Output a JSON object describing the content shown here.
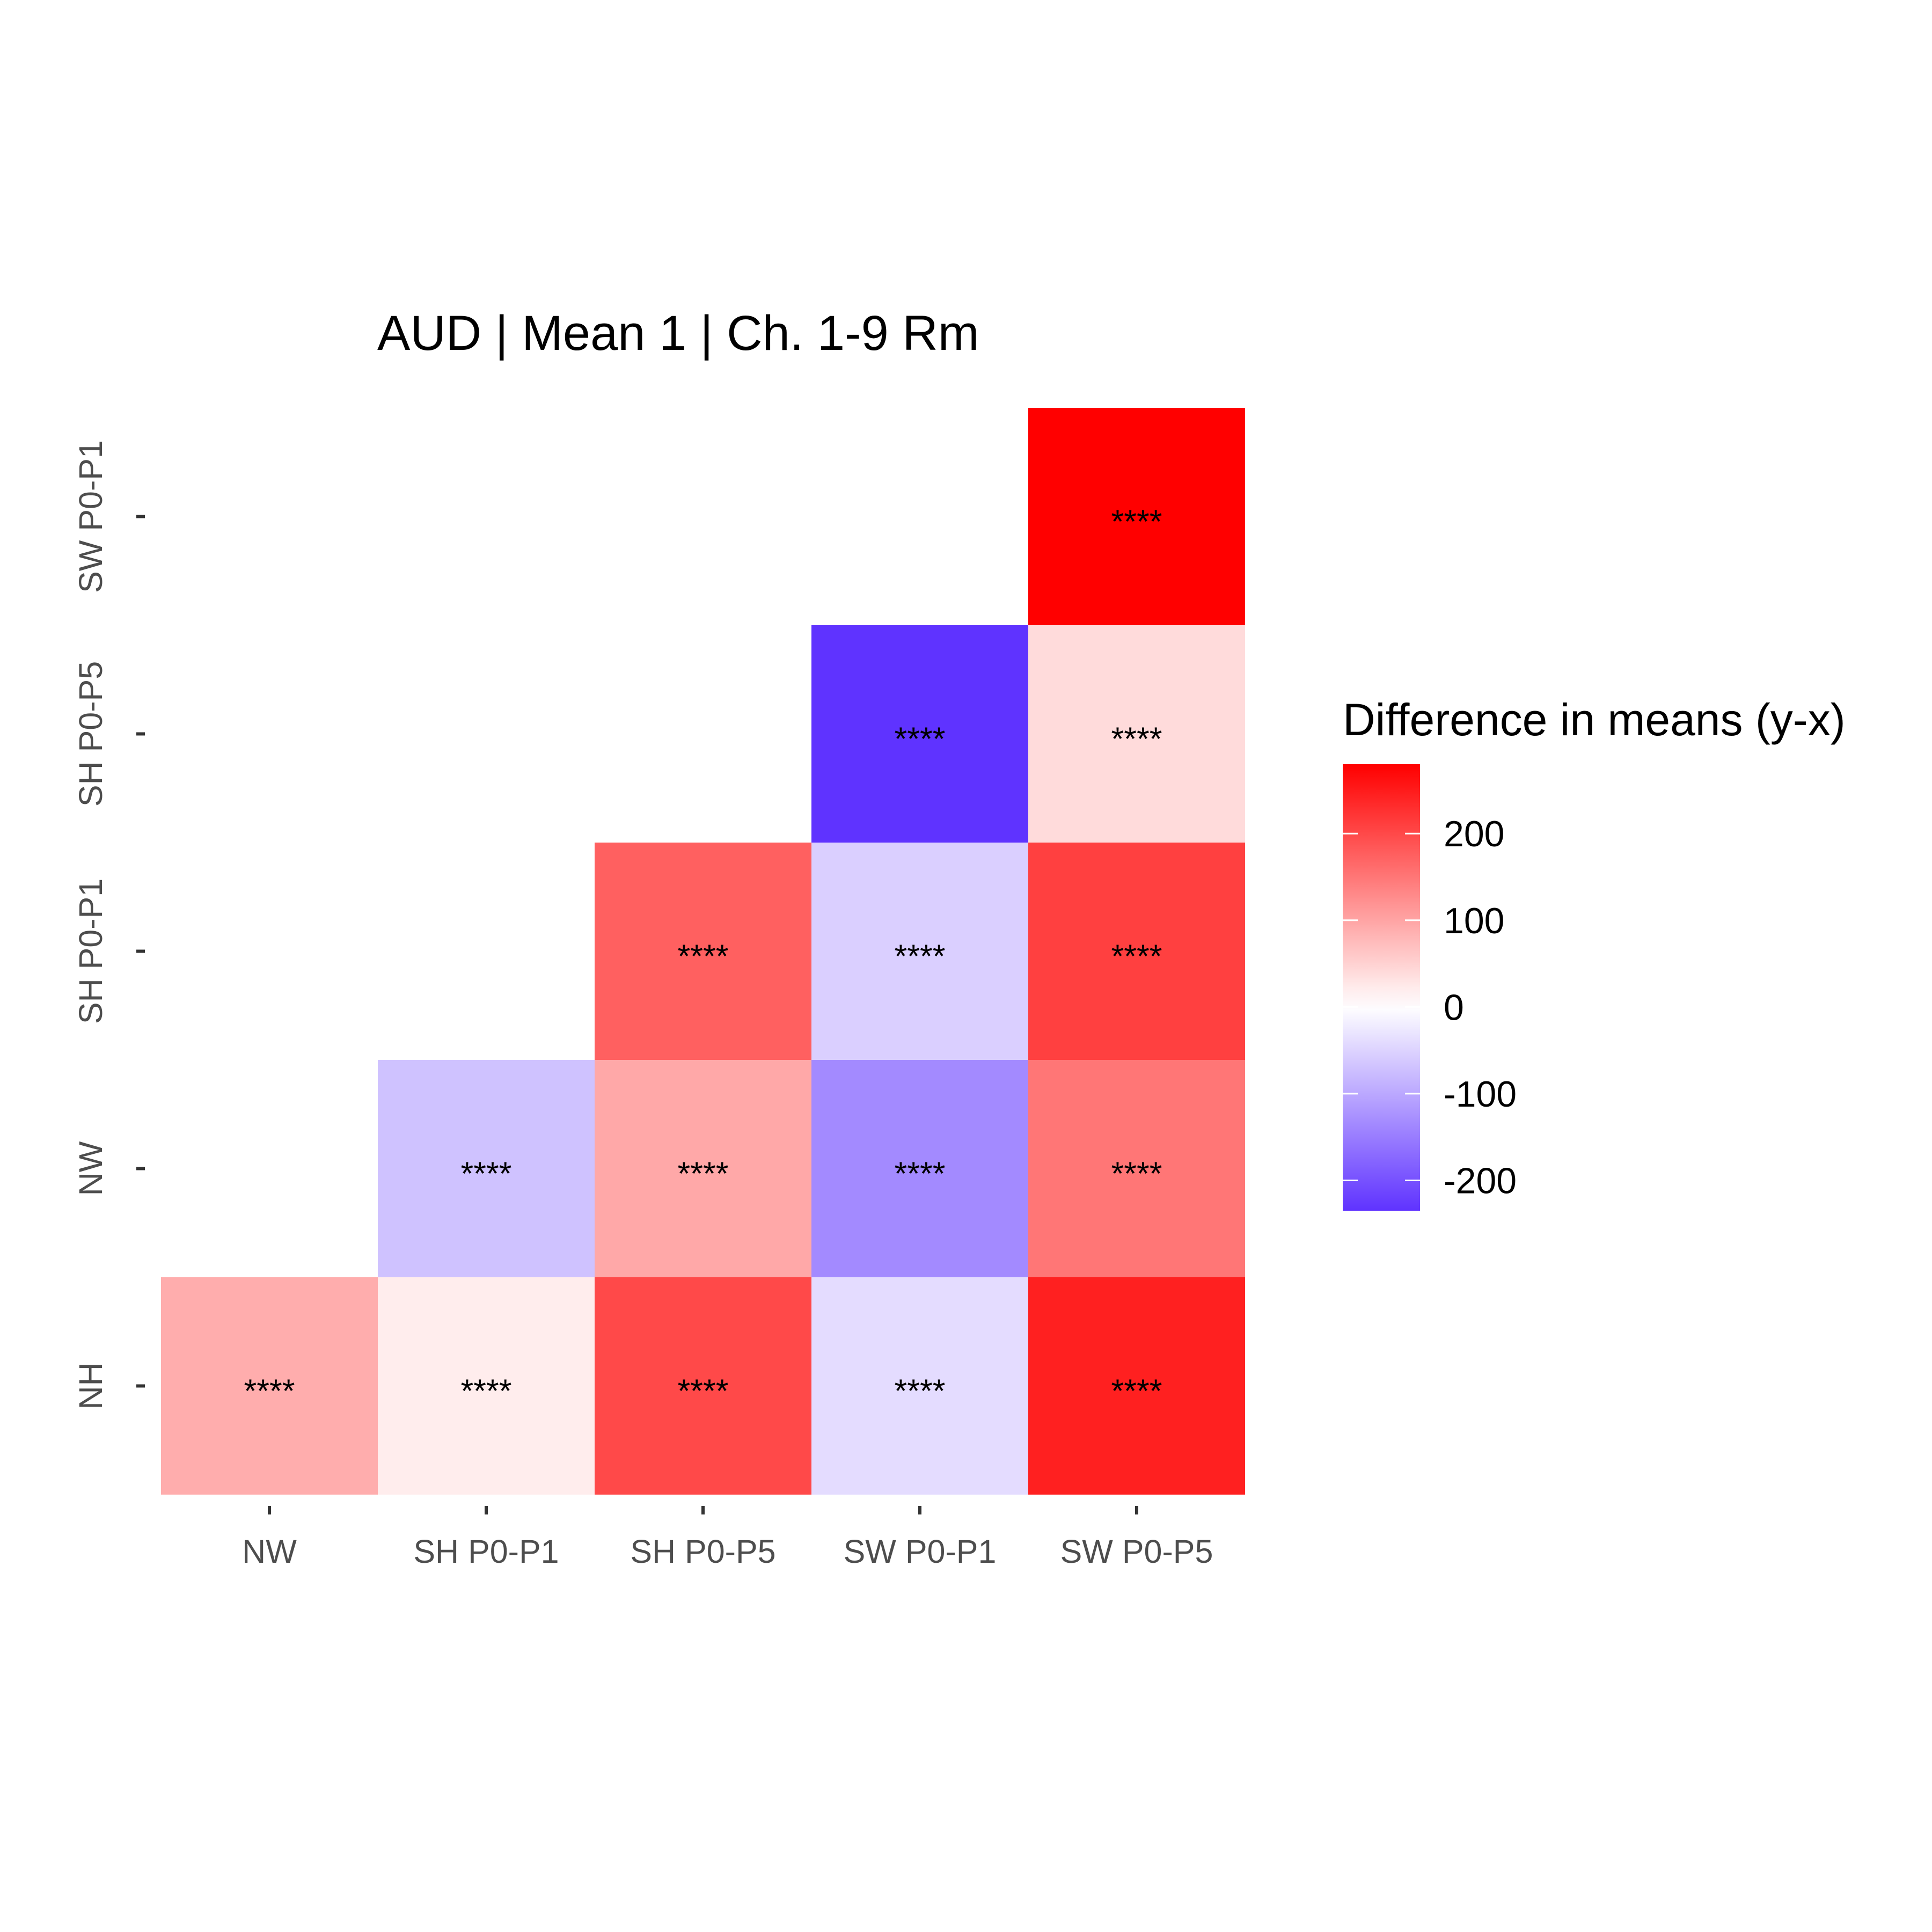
{
  "chart_data": {
    "type": "heatmap",
    "title": "AUD | Mean 1 | Ch. 1-9 Rm",
    "xlabel": "",
    "ylabel": "",
    "x_categories": [
      "NW",
      "SH P0-P1",
      "SH P0-P5",
      "SW P0-P1",
      "SW P0-P5"
    ],
    "y_categories": [
      "NH",
      "NW",
      "SH P0-P1",
      "SH P0-P5",
      "SW P0-P1"
    ],
    "cells": [
      {
        "x": "NW",
        "y": "NH",
        "value": 90,
        "label": "****"
      },
      {
        "x": "SH P0-P1",
        "y": "NH",
        "value": 20,
        "label": "****"
      },
      {
        "x": "SH P0-P5",
        "y": "NH",
        "value": 200,
        "label": "****"
      },
      {
        "x": "SW P0-P1",
        "y": "NH",
        "value": -40,
        "label": "****"
      },
      {
        "x": "SW P0-P5",
        "y": "NH",
        "value": 245,
        "label": "****"
      },
      {
        "x": "SH P0-P1",
        "y": "NW",
        "value": -70,
        "label": "****"
      },
      {
        "x": "SH P0-P5",
        "y": "NW",
        "value": 95,
        "label": "****"
      },
      {
        "x": "SW P0-P1",
        "y": "NW",
        "value": -135,
        "label": "****"
      },
      {
        "x": "SW P0-P5",
        "y": "NW",
        "value": 150,
        "label": "****"
      },
      {
        "x": "SH P0-P5",
        "y": "SH P0-P1",
        "value": 175,
        "label": "****"
      },
      {
        "x": "SW P0-P1",
        "y": "SH P0-P1",
        "value": -55,
        "label": "****"
      },
      {
        "x": "SW P0-P5",
        "y": "SH P0-P1",
        "value": 210,
        "label": "****"
      },
      {
        "x": "SW P0-P1",
        "y": "SH P0-P5",
        "value": -235,
        "label": "****"
      },
      {
        "x": "SW P0-P5",
        "y": "SH P0-P5",
        "value": 40,
        "label": "****"
      },
      {
        "x": "SW P0-P5",
        "y": "SW P0-P1",
        "value": 280,
        "label": "****"
      }
    ],
    "legend": {
      "title": "Difference in means (y-x)",
      "position": "right",
      "range": [
        -235,
        280
      ],
      "ticks": [
        200,
        100,
        0,
        -100,
        -200
      ],
      "low_color": "#5f33ff",
      "mid_color": "#ffffff",
      "high_color": "#ff0000",
      "midpoint": 0
    },
    "grid": false
  }
}
